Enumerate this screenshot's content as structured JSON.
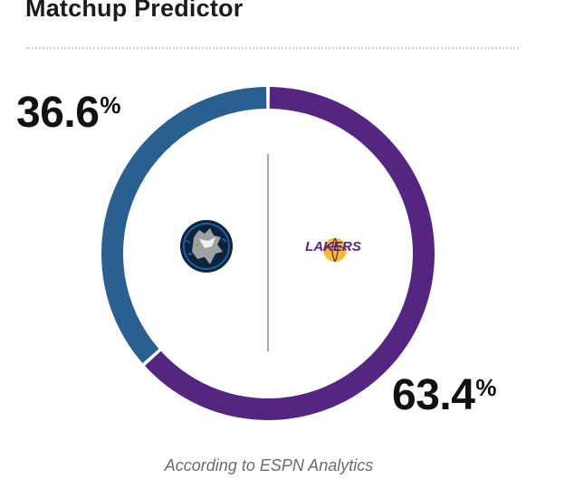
{
  "title": "Matchup Predictor",
  "caption": "According to ESPN Analytics",
  "chart_data": {
    "type": "pie",
    "variant": "donut",
    "title": "Matchup Predictor",
    "slices": [
      {
        "team": "Minnesota Timberwolves",
        "value": 36.6,
        "display": "36.6",
        "unit": "%",
        "color": "#2a6090"
      },
      {
        "team": "Los Angeles Lakers",
        "value": 63.4,
        "display": "63.4",
        "unit": "%",
        "color": "#552582"
      }
    ],
    "logos": [
      {
        "team": "Minnesota Timberwolves",
        "icon": "timberwolves-logo-icon"
      },
      {
        "team": "Los Angeles Lakers",
        "icon": "lakers-logo-icon",
        "wordmark": "LAKERS"
      }
    ]
  }
}
